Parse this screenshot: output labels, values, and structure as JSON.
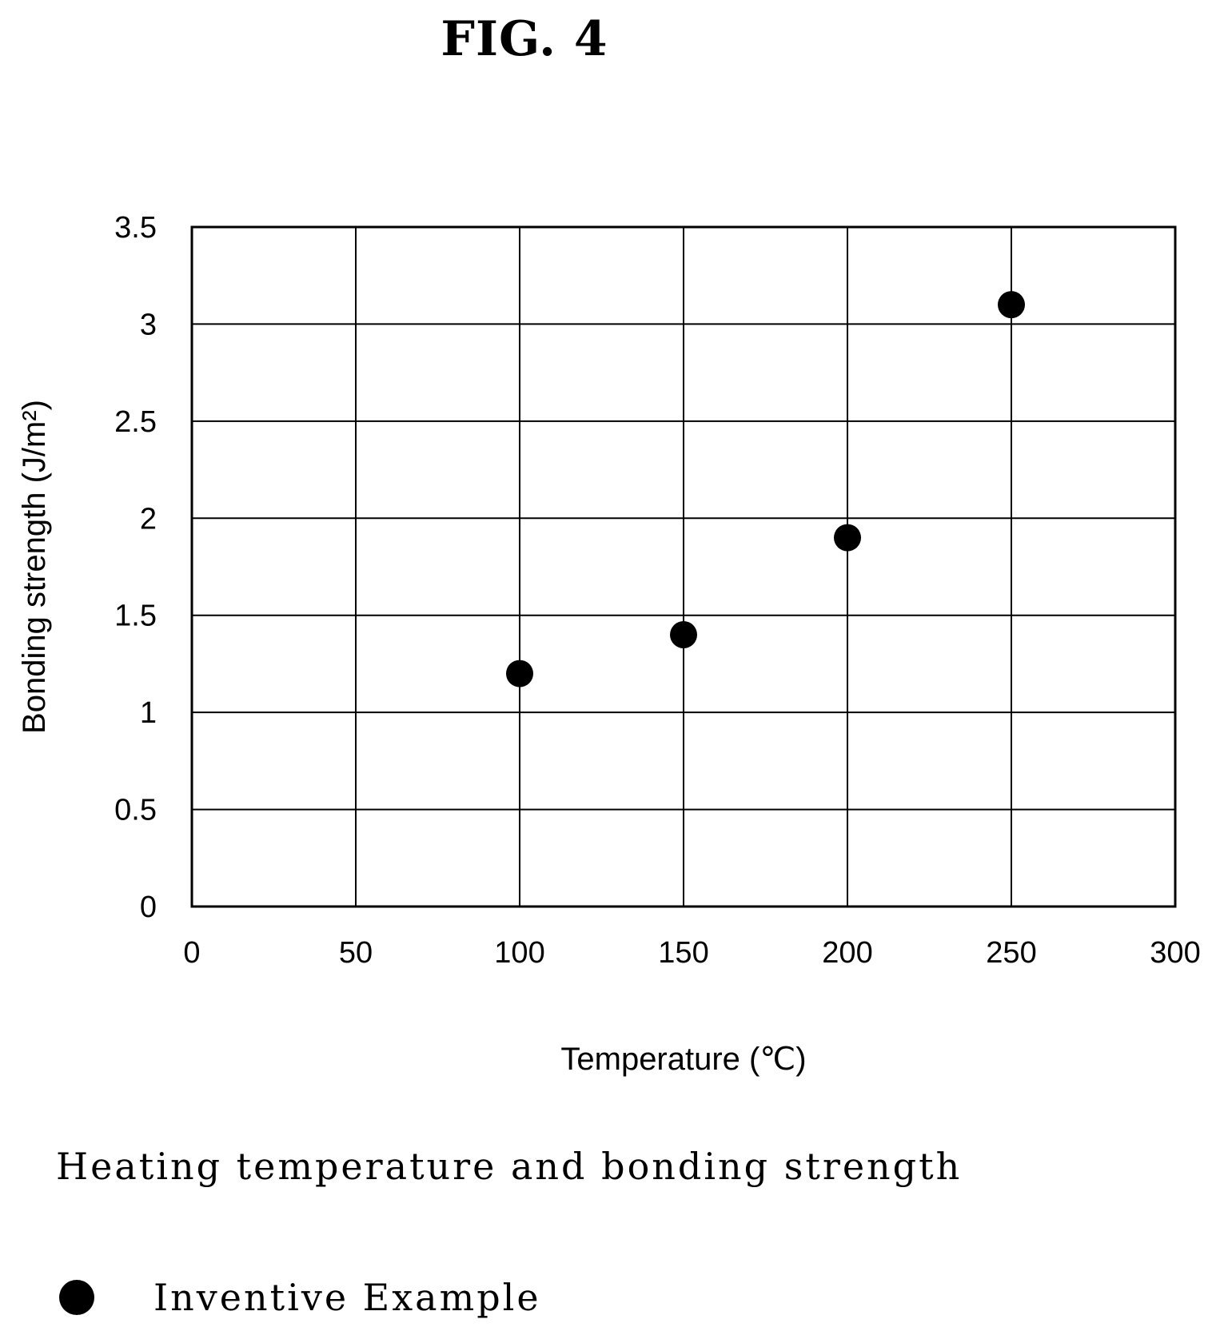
{
  "figure_label": "FIG. 4",
  "caption": "Heating temperature and bonding strength",
  "legend": [
    {
      "label": "Inventive Example",
      "marker": "filled-circle"
    }
  ],
  "chart_data": {
    "type": "scatter",
    "title": "",
    "xlabel": "Temperature (℃)",
    "ylabel": "Bonding strength (J/m²)",
    "xlim": [
      0,
      300
    ],
    "ylim": [
      0,
      3.5
    ],
    "x_ticks": [
      0,
      50,
      100,
      150,
      200,
      250,
      300
    ],
    "x_tick_labels": [
      "0",
      "50",
      "100",
      "150",
      "200",
      "250",
      "300"
    ],
    "y_ticks": [
      0,
      0.5,
      1,
      1.5,
      2,
      2.5,
      3,
      3.5
    ],
    "y_tick_labels": [
      "0",
      "0.5",
      "1",
      "1.5",
      "2",
      "2.5",
      "3",
      "3.5"
    ],
    "grid": true,
    "legend_position": "below",
    "series": [
      {
        "name": "Inventive Example",
        "color": "#000000",
        "x": [
          100,
          150,
          200,
          250
        ],
        "y": [
          1.2,
          1.4,
          1.9,
          3.1
        ]
      }
    ]
  }
}
